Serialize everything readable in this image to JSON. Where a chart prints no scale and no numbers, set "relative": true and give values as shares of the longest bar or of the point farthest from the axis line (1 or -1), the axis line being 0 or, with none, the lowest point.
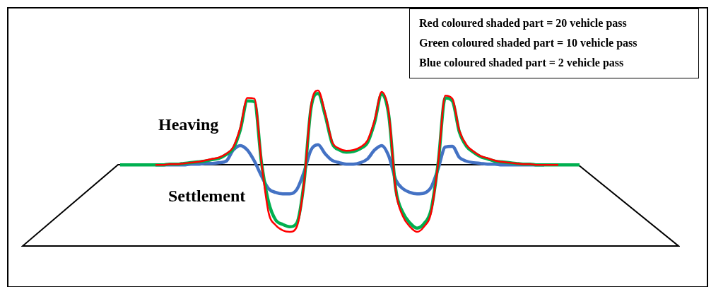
{
  "chart_data": {
    "type": "line",
    "relative": true,
    "marker": "none",
    "tick_labels": false,
    "categories": [
      null,
      null,
      null,
      null,
      null,
      null,
      null,
      null,
      null,
      null,
      null,
      null,
      null,
      null,
      null,
      null,
      null,
      null,
      null,
      null,
      null,
      null,
      null,
      null,
      null,
      null,
      null,
      null,
      null,
      null,
      null,
      null,
      null,
      null,
      null,
      null,
      null,
      null,
      null,
      null,
      null,
      null,
      null,
      null,
      null,
      null,
      null,
      null,
      null,
      null,
      null,
      null,
      null,
      null,
      null,
      null,
      null,
      null,
      null,
      null,
      null,
      null,
      null,
      null,
      null,
      null
    ],
    "series": [
      {
        "color": "#ff0000",
        "values": [
          null,
          null,
          null,
          null,
          null,
          0,
          0,
          0.01,
          0.01,
          0.02,
          0.03,
          0.04,
          0.06,
          0.08,
          0.1,
          0.15,
          0.24,
          0.5,
          0.9,
          0.89,
          0.03,
          -0.64,
          -0.81,
          -0.88,
          -0.9,
          -0.83,
          -0.26,
          0.79,
          1,
          0.7,
          0.31,
          0.22,
          0.19,
          0.2,
          0.24,
          0.33,
          0.6,
          0.98,
          0.7,
          -0.35,
          -0.69,
          -0.83,
          -0.9,
          -0.83,
          -0.64,
          0.03,
          0.93,
          0.89,
          0.46,
          0.27,
          0.18,
          0.12,
          0.09,
          0.06,
          0.04,
          0.03,
          0.02,
          0.01,
          0.01,
          0,
          0,
          0,
          0,
          null,
          null,
          null
        ]
      },
      {
        "color": "#00b050",
        "values": [
          0,
          0,
          0,
          0,
          0,
          0,
          0,
          0.01,
          0.01,
          0.02,
          0.03,
          0.04,
          0.05,
          0.07,
          0.09,
          0.14,
          0.22,
          0.47,
          0.86,
          0.85,
          0.03,
          -0.5,
          -0.74,
          -0.8,
          -0.83,
          -0.78,
          -0.25,
          0.76,
          0.96,
          0.67,
          0.29,
          0.2,
          0.17,
          0.18,
          0.22,
          0.3,
          0.57,
          0.95,
          0.67,
          -0.33,
          -0.64,
          -0.78,
          -0.85,
          -0.79,
          -0.6,
          0.03,
          0.9,
          0.86,
          0.44,
          0.25,
          0.17,
          0.11,
          0.08,
          0.05,
          0.04,
          0.03,
          0.02,
          0.01,
          0.01,
          0,
          0,
          0,
          0,
          0,
          0,
          0
        ]
      },
      {
        "color": "#4472c4",
        "values": [
          null,
          null,
          null,
          null,
          null,
          0,
          0,
          0,
          0,
          0,
          0.01,
          0.01,
          0.02,
          0.02,
          0.03,
          0.05,
          0.2,
          0.26,
          0.2,
          0.05,
          -0.15,
          -0.32,
          -0.37,
          -0.39,
          -0.39,
          -0.33,
          -0.1,
          0.2,
          0.27,
          0.15,
          0.06,
          0.03,
          0.01,
          0.01,
          0.03,
          0.08,
          0.2,
          0.26,
          0.12,
          -0.2,
          -0.32,
          -0.37,
          -0.39,
          -0.38,
          -0.3,
          -0.05,
          0.24,
          0.25,
          0.1,
          0.05,
          0.03,
          0.02,
          0.01,
          0.01,
          0,
          0,
          0,
          0,
          0,
          0,
          0,
          null,
          null,
          null,
          null,
          null
        ]
      }
    ],
    "annotations": [
      "Heaving",
      "Settlement",
      "Red coloured shaded part = 20 vehicle pass",
      "Green coloured shaded part = 10 vehicle pass",
      "Blue coloured shaded part = 2 vehicle pass"
    ]
  }
}
